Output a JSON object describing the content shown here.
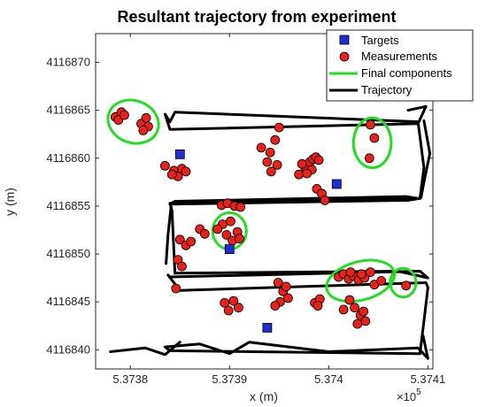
{
  "chart_data": {
    "type": "scatter",
    "title": "Resultant trajectory from experiment",
    "xlabel": "x (m)",
    "ylabel": "y (m)",
    "x_exponent_label": "×10",
    "x_exponent_power": "5",
    "xlim": [
      537376.5,
      537410.5
    ],
    "ylim": [
      4116838,
      4116873
    ],
    "x_ticks": [
      537380,
      537390,
      537400,
      537410
    ],
    "x_tick_labels": [
      "5.3738",
      "5.3739",
      "5.374",
      "5.3741"
    ],
    "y_ticks": [
      4116840,
      4116845,
      4116850,
      4116855,
      4116860,
      4116865,
      4116870
    ],
    "y_tick_labels": [
      "4116840",
      "4116845",
      "4116850",
      "4116855",
      "4116860",
      "4116865",
      "4116870"
    ],
    "grid": false,
    "legend_position": "top-right",
    "colors": {
      "targets": "#1f2fd6",
      "measurements": "#e8211b",
      "components": "#22dd22",
      "trajectory": "#000000"
    },
    "series": [
      {
        "name": "Targets",
        "type": "scatter",
        "marker": "square",
        "x": [
          537385,
          537390,
          537400.8,
          537393.8
        ],
        "y": [
          4116860.4,
          4116850.5,
          4116857.3,
          4116842.3
        ]
      },
      {
        "name": "Measurements",
        "type": "scatter",
        "marker": "circle",
        "x": [
          537378.5,
          537379.1,
          537378.8,
          537379.4,
          537381.1,
          537381.6,
          537381.8,
          537381.3,
          537383.5,
          537384.4,
          537385.2,
          537385.6,
          537384.8,
          537384.2,
          537393.2,
          537394.1,
          537394.6,
          537395.0,
          537394.2,
          537394.8,
          537393.8,
          537397.0,
          537397.6,
          537398.1,
          537398.4,
          537398.7,
          537399.0,
          537398.3,
          537397.8,
          537397.3,
          537398.8,
          537399.3,
          537399.6,
          537404.2,
          537404.6,
          537404.1,
          537389.2,
          537389.8,
          537390.5,
          537391.1,
          537389.3,
          537390.1,
          537390.8,
          537389.7,
          537390.3,
          537391.0,
          537388.8,
          537385.0,
          537385.6,
          537386.1,
          537387.0,
          537387.5,
          537384.8,
          537385.2,
          537384.6,
          537389.5,
          537390.4,
          537390.9,
          537389.9,
          537394.9,
          537395.4,
          537395.9,
          537395.1,
          537395.7,
          537394.6,
          537398.6,
          537399.1,
          537398.9,
          537401.0,
          537401.5,
          537402.0,
          537402.5,
          537403.0,
          537402.2,
          537403.6,
          537404.2,
          537403.3,
          537402.1,
          537402.6,
          537403.2,
          537403.7,
          537402.9,
          537403.5,
          537401.5,
          537404.6,
          537405.3,
          537407.8
        ],
        "y": [
          4116864.3,
          4116864.8,
          4116864.0,
          4116864.5,
          4116863.6,
          4116864.2,
          4116863.3,
          4116862.9,
          4116859.2,
          4116858.7,
          4116858.9,
          4116858.6,
          4116858.1,
          4116858.3,
          4116861.1,
          4116860.6,
          4116861.9,
          4116863.2,
          4116858.6,
          4116859.3,
          4116859.6,
          4116858.3,
          4116859.1,
          4116859.6,
          4116859.9,
          4116860.1,
          4116859.8,
          4116858.8,
          4116858.4,
          4116859.4,
          4116856.8,
          4116856.3,
          4116855.6,
          4116863.5,
          4116862.1,
          4116860.0,
          4116855.1,
          4116855.3,
          4116855.0,
          4116854.9,
          4116853.1,
          4116853.4,
          4116852.3,
          4116852.0,
          4116851.4,
          4116851.6,
          4116852.6,
          4116851.5,
          4116850.9,
          4116851.3,
          4116852.6,
          4116852.1,
          4116849.4,
          4116848.7,
          4116846.4,
          4116844.9,
          4116845.1,
          4116844.4,
          4116844.1,
          4116847.0,
          4116846.1,
          4116845.4,
          4116845.0,
          4116846.6,
          4116844.6,
          4116844.9,
          4116845.3,
          4116844.6,
          4116847.6,
          4116847.9,
          4116847.4,
          4116847.7,
          4116847.3,
          4116848.1,
          4116847.5,
          4116848.1,
          4116847.9,
          4116845.2,
          4116844.4,
          4116843.6,
          4116843.0,
          4116842.7,
          4116844.0,
          4116844.2,
          4116846.8,
          4116847.2,
          4116846.7
        ]
      },
      {
        "name": "Final components",
        "type": "ellipse",
        "ellipses": [
          {
            "cx": 537380.3,
            "cy": 4116863.8,
            "rx": 2.6,
            "ry": 2.2,
            "rotation_deg": 20
          },
          {
            "cx": 537404.4,
            "cy": 4116861.6,
            "rx": 1.9,
            "ry": 2.6,
            "rotation_deg": 0
          },
          {
            "cx": 537390.0,
            "cy": 4116852.4,
            "rx": 1.7,
            "ry": 1.9,
            "rotation_deg": 0
          },
          {
            "cx": 537403.2,
            "cy": 4116847.2,
            "rx": 3.5,
            "ry": 2.0,
            "rotation_deg": -15
          },
          {
            "cx": 537407.5,
            "cy": 4116847.0,
            "rx": 1.3,
            "ry": 1.5,
            "rotation_deg": 0
          }
        ]
      },
      {
        "name": "Trajectory",
        "type": "line",
        "paths": [
          {
            "x": [
              537408.0,
              537409.8,
              537409.0,
              537384.0,
              537383.5,
              537384.0,
              537384.5,
              537409.0,
              537409.6,
              537409.2
            ],
            "y": [
              4116865.0,
              4116865.4,
              4116863.6,
              4116863.0,
              4116864.6,
              4116863.8,
              4116864.8,
              4116863.8,
              4116859.0,
              4116855.8
            ]
          },
          {
            "x": [
              537409.2,
              537408.0,
              537384.0,
              537384.5,
              537407.8,
              537409.0,
              537384.0,
              537384.2,
              537384.5
            ],
            "y": [
              4116855.8,
              4116855.6,
              4116855.2,
              4116855.5,
              4116856.0,
              4116855.8,
              4116855.3,
              4116854.5,
              4116848.0
            ]
          },
          {
            "x": [
              537384.5,
              537407.0,
              537410.0,
              537409.2,
              537384.0,
              537383.8,
              537385.0,
              537409.8,
              537410.0
            ],
            "y": [
              4116848.0,
              4116848.2,
              4116847.5,
              4116848.2,
              4116847.6,
              4116847.8,
              4116846.2,
              4116847.0,
              4116846.5
            ]
          },
          {
            "x": [
              537410.0,
              537409.6,
              537409.2,
              537384.0,
              537383.5,
              537387.0,
              537390.0,
              537392.0,
              537400.0,
              537409.0,
              537410.0,
              537409.5
            ],
            "y": [
              4116846.5,
              4116843.0,
              4116839.6,
              4116839.9,
              4116840.3,
              4116840.6,
              4116839.6,
              4116840.8,
              4116839.8,
              4116840.2,
              4116839.1,
              4116841.5
            ]
          },
          {
            "x": [
              537384.1,
              537383.8,
              537383.6
            ],
            "y": [
              4116854.9,
              4116852.0,
              4116849.0
            ]
          },
          {
            "x": [
              537378.0,
              537381.5,
              537383.5,
              537385.0
            ],
            "y": [
              4116839.8,
              4116840.2,
              4116839.5,
              4116840.8
            ]
          },
          {
            "x": [
              537409.6,
              537410.2,
              537409.6,
              537409.3
            ],
            "y": [
              4116863.9,
              4116860.5,
              4116857.5,
              4116855.9
            ]
          }
        ]
      }
    ]
  }
}
